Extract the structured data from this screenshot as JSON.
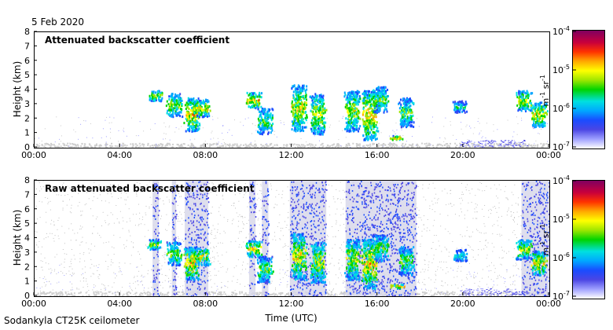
{
  "header": {
    "date": "5 Feb 2020"
  },
  "footer": {
    "instrument": "Sodankyla CT25K ceilometer"
  },
  "chart_data": [
    {
      "type": "heatmap",
      "title": "Attenuated backscatter coefficient",
      "xlabel": "Time (UTC)",
      "ylabel": "Height (km)",
      "xticks": [
        "00:00",
        "04:00",
        "08:00",
        "12:00",
        "16:00",
        "20:00",
        "00:00"
      ],
      "yticks": [
        "0",
        "1",
        "2",
        "3",
        "4",
        "5",
        "6",
        "7",
        "8"
      ],
      "xlim_hours": [
        0,
        24
      ],
      "ylim": [
        0,
        8
      ],
      "colorbar": {
        "label_base": "m",
        "label_exp1": "-1",
        "label_mid": " sr",
        "label_exp2": "-1",
        "ticks": [
          {
            "base": "10",
            "exp": "-4"
          },
          {
            "base": "10",
            "exp": "-5"
          },
          {
            "base": "10",
            "exp": "-6"
          },
          {
            "base": "10",
            "exp": "-7"
          }
        ],
        "log_range": [
          -7,
          -4
        ]
      },
      "features": [
        {
          "kind": "cloud",
          "t": 5.6,
          "h0": 3.3,
          "h1": 4.0,
          "level": 0.8
        },
        {
          "kind": "cloud",
          "t": 6.5,
          "h0": 2.2,
          "h1": 3.8,
          "level": 0.75
        },
        {
          "kind": "cloud",
          "t": 7.3,
          "h0": 1.2,
          "h1": 3.5,
          "level": 0.9
        },
        {
          "kind": "cloud",
          "t": 7.8,
          "h0": 2.2,
          "h1": 3.4,
          "level": 0.85
        },
        {
          "kind": "cloud",
          "t": 10.2,
          "h0": 2.8,
          "h1": 3.9,
          "level": 0.9
        },
        {
          "kind": "cloud",
          "t": 10.7,
          "h0": 1.0,
          "h1": 2.8,
          "level": 0.7
        },
        {
          "kind": "cloud",
          "t": 12.3,
          "h0": 1.2,
          "h1": 4.4,
          "level": 0.85
        },
        {
          "kind": "cloud",
          "t": 13.2,
          "h0": 1.0,
          "h1": 3.8,
          "level": 0.8
        },
        {
          "kind": "cloud",
          "t": 14.8,
          "h0": 1.2,
          "h1": 4.0,
          "level": 0.8
        },
        {
          "kind": "cloud",
          "t": 15.6,
          "h0": 0.6,
          "h1": 4.0,
          "level": 0.9
        },
        {
          "kind": "cloud",
          "t": 16.1,
          "h0": 2.5,
          "h1": 4.3,
          "level": 0.7
        },
        {
          "kind": "cloud",
          "t": 17.3,
          "h0": 1.5,
          "h1": 3.5,
          "level": 0.7
        },
        {
          "kind": "cloud",
          "t": 16.9,
          "h0": 0.6,
          "h1": 0.9,
          "level": 0.95
        },
        {
          "kind": "cloud",
          "t": 19.8,
          "h0": 2.5,
          "h1": 3.3,
          "level": 0.6
        },
        {
          "kind": "cloud",
          "t": 22.8,
          "h0": 2.6,
          "h1": 4.0,
          "level": 0.8
        },
        {
          "kind": "cloud",
          "t": 23.5,
          "h0": 1.5,
          "h1": 3.2,
          "level": 0.85
        }
      ]
    },
    {
      "type": "heatmap",
      "title": "Raw attenuated backscatter coefficient",
      "xlabel": "Time (UTC)",
      "ylabel": "Height (km)",
      "xticks": [
        "00:00",
        "04:00",
        "08:00",
        "12:00",
        "16:00",
        "20:00",
        "00:00"
      ],
      "yticks": [
        "0",
        "1",
        "2",
        "3",
        "4",
        "5",
        "6",
        "7",
        "8"
      ],
      "xlim_hours": [
        0,
        24
      ],
      "ylim": [
        0,
        8
      ],
      "colorbar": {
        "label_base": "m",
        "label_exp1": "-1",
        "label_mid": " sr",
        "label_exp2": "-1",
        "ticks": [
          {
            "base": "10",
            "exp": "-4"
          },
          {
            "base": "10",
            "exp": "-5"
          },
          {
            "base": "10",
            "exp": "-6"
          },
          {
            "base": "10",
            "exp": "-7"
          }
        ],
        "log_range": [
          -7,
          -4
        ]
      },
      "noise_columns": [
        {
          "t0": 5.5,
          "t1": 5.8
        },
        {
          "t0": 6.4,
          "t1": 6.6
        },
        {
          "t0": 7.0,
          "t1": 8.1
        },
        {
          "t0": 10.0,
          "t1": 10.3
        },
        {
          "t0": 10.6,
          "t1": 10.9
        },
        {
          "t0": 11.9,
          "t1": 13.6
        },
        {
          "t0": 14.5,
          "t1": 17.8
        },
        {
          "t0": 22.7,
          "t1": 24.0
        }
      ]
    }
  ]
}
